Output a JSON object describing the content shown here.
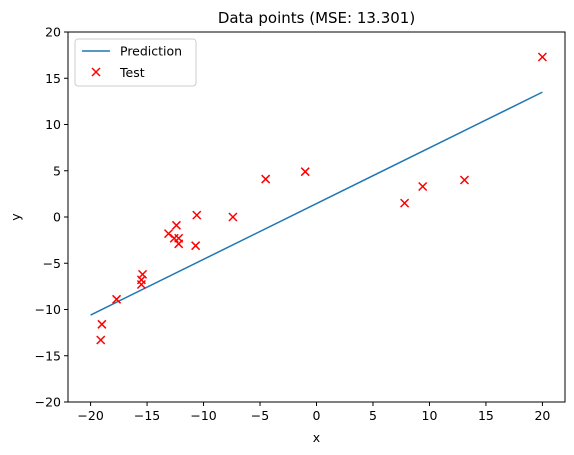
{
  "chart_data": {
    "type": "scatter",
    "title": "Data points (MSE: 13.301)",
    "xlabel": "x",
    "ylabel": "y",
    "xlim": [
      -22,
      22
    ],
    "ylim": [
      -20,
      20
    ],
    "xticks": [
      -20,
      -15,
      -10,
      -5,
      0,
      5,
      10,
      15,
      20
    ],
    "yticks": [
      -20,
      -15,
      -10,
      -5,
      0,
      5,
      10,
      15,
      20
    ],
    "grid": false,
    "legend_position": "top-left",
    "series": [
      {
        "name": "Prediction",
        "kind": "line",
        "color": "#1f77b4",
        "x": [
          -20,
          20
        ],
        "y": [
          -10.6,
          13.5
        ]
      },
      {
        "name": "Test",
        "kind": "scatter",
        "marker": "x",
        "color": "#ff0000",
        "x": [
          20.0,
          -19.0,
          -19.1,
          -17.7,
          -15.5,
          -15.5,
          -15.4,
          -13.1,
          -12.6,
          -12.4,
          -12.2,
          -12.2,
          -10.7,
          -10.6,
          -7.4,
          -4.5,
          -1.0,
          7.8,
          9.4,
          13.1
        ],
        "y": [
          17.3,
          -11.6,
          -13.3,
          -8.9,
          -7.3,
          -6.8,
          -6.2,
          -1.8,
          -2.3,
          -0.9,
          -2.9,
          -2.3,
          -3.1,
          0.2,
          0.0,
          4.1,
          4.9,
          1.5,
          3.3,
          4.0
        ]
      }
    ]
  }
}
